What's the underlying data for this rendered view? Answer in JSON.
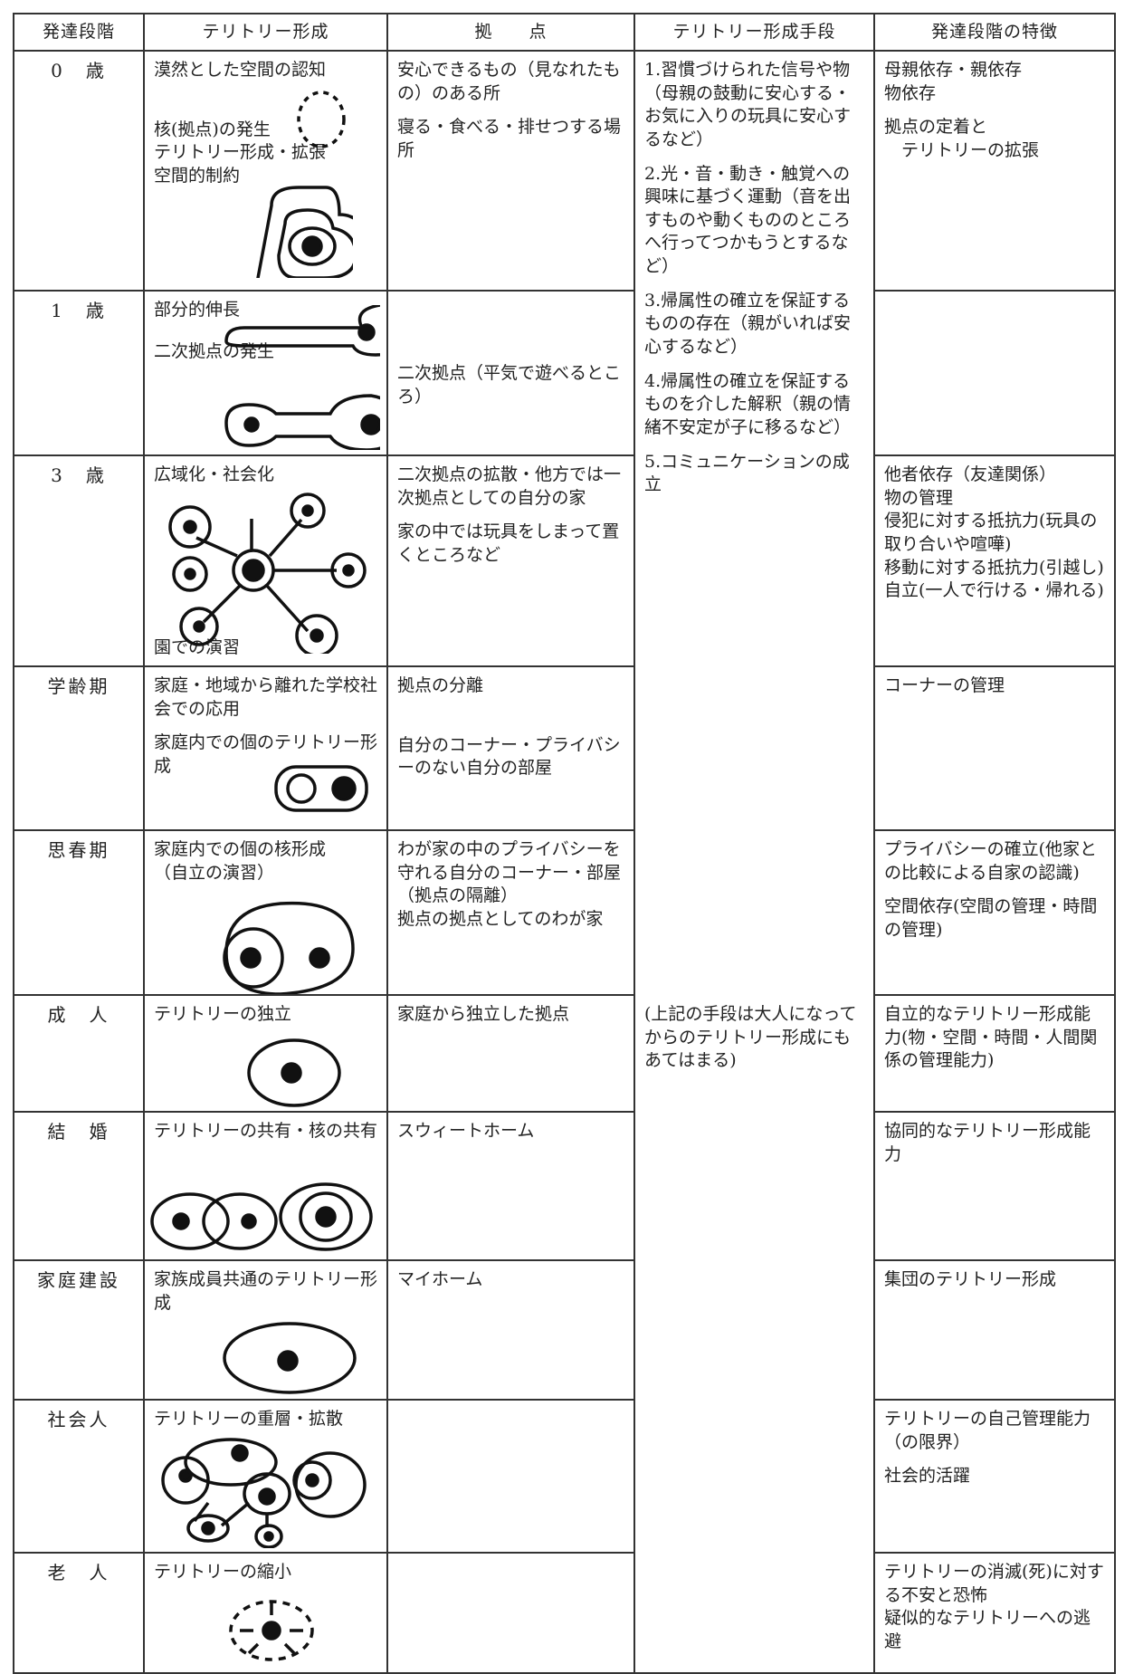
{
  "header": [
    "発達段階",
    "テリトリー形成",
    "拠　　点",
    "テリトリー形成手段",
    "発達段階の特徴"
  ],
  "rows": [
    {
      "stage": "0　歳",
      "formation": [
        "漠然とした空間の認知",
        "核(拠点)の発生\nテリトリー形成・拡張\n空間的制約"
      ],
      "base": [
        "安心できるもの（見なれたもの）のある所",
        "寝る・食べる・排せつする場所"
      ],
      "features": [
        "母親依存・親依存\n物依存",
        "拠点の定着と\n　テリトリーの拡張"
      ]
    },
    {
      "stage": "1　歳",
      "formation": [
        "部分的伸長",
        "二次拠点の発生"
      ],
      "base": [
        "二次拠点（平気で遊べるところ）"
      ],
      "features": []
    },
    {
      "stage": "3　歳",
      "formation": [
        "広域化・社会化",
        "園での演習"
      ],
      "base": [
        "二次拠点の拡散・他方では一次拠点としての自分の家",
        "家の中では玩具をしまって置くところなど"
      ],
      "features": [
        "他者依存（友達関係）\n物の管理\n侵犯に対する抵抗力(玩具の取り合いや喧嘩)\n移動に対する抵抗力(引越し)\n自立(一人で行ける・帰れる)"
      ]
    },
    {
      "stage": "学齢期",
      "formation": [
        "家庭・地域から離れた学校社会での応用",
        "家庭内での個のテリトリー形成"
      ],
      "base": [
        "拠点の分離",
        "自分のコーナー・プライバシーのない自分の部屋"
      ],
      "features": [
        "コーナーの管理"
      ]
    },
    {
      "stage": "思春期",
      "formation": [
        "家庭内での個の核形成\n（自立の演習）"
      ],
      "base": [
        "わが家の中のプライバシーを守れる自分のコーナー・部屋（拠点の隔離）\n拠点の拠点としてのわが家"
      ],
      "features": [
        "プライバシーの確立(他家との比較による自家の認識)",
        "空間依存(空間の管理・時間の管理)"
      ]
    },
    {
      "stage": "成　人",
      "formation": [
        "テリトリーの独立"
      ],
      "base": [
        "家庭から独立した拠点"
      ],
      "features": [
        "自立的なテリトリー形成能力(物・空間・時間・人間関係の管理能力)"
      ]
    },
    {
      "stage": "結　婚",
      "formation": [
        "テリトリーの共有・核の共有"
      ],
      "base": [
        "スウィートホーム"
      ],
      "features": [
        "協同的なテリトリー形成能力"
      ]
    },
    {
      "stage": "家庭建設",
      "formation": [
        "家族成員共通のテリトリー形成"
      ],
      "base": [
        "マイホーム"
      ],
      "features": [
        "集団のテリトリー形成"
      ]
    },
    {
      "stage": "社会人",
      "formation": [
        "テリトリーの重層・拡散"
      ],
      "base": [],
      "features": [
        "テリトリーの自己管理能力（の限界）",
        "社会的活躍"
      ]
    },
    {
      "stage": "老　人",
      "formation": [
        "テリトリーの縮小"
      ],
      "base": [],
      "features": [
        "テリトリーの消滅(死)に対する不安と恐怖\n疑似的なテリトリーへの逃避"
      ]
    }
  ],
  "means": [
    "1.習慣づけられた信号や物（母親の鼓動に安心する・お気に入りの玩具に安心するなど）",
    "2.光・音・動き・触覚への興味に基づく運動（音を出すものや動くもののところへ行ってつかもうとするなど）",
    "3.帰属性の確立を保証するものの存在（親がいれば安心するなど）",
    "4.帰属性の確立を保証するものを介した解釈（親の情緒不安定が子に移るなど）",
    "5.コミュニケーションの成立"
  ],
  "means_note": "(上記の手段は大人になってからのテリトリー形成にもあてはまる)"
}
